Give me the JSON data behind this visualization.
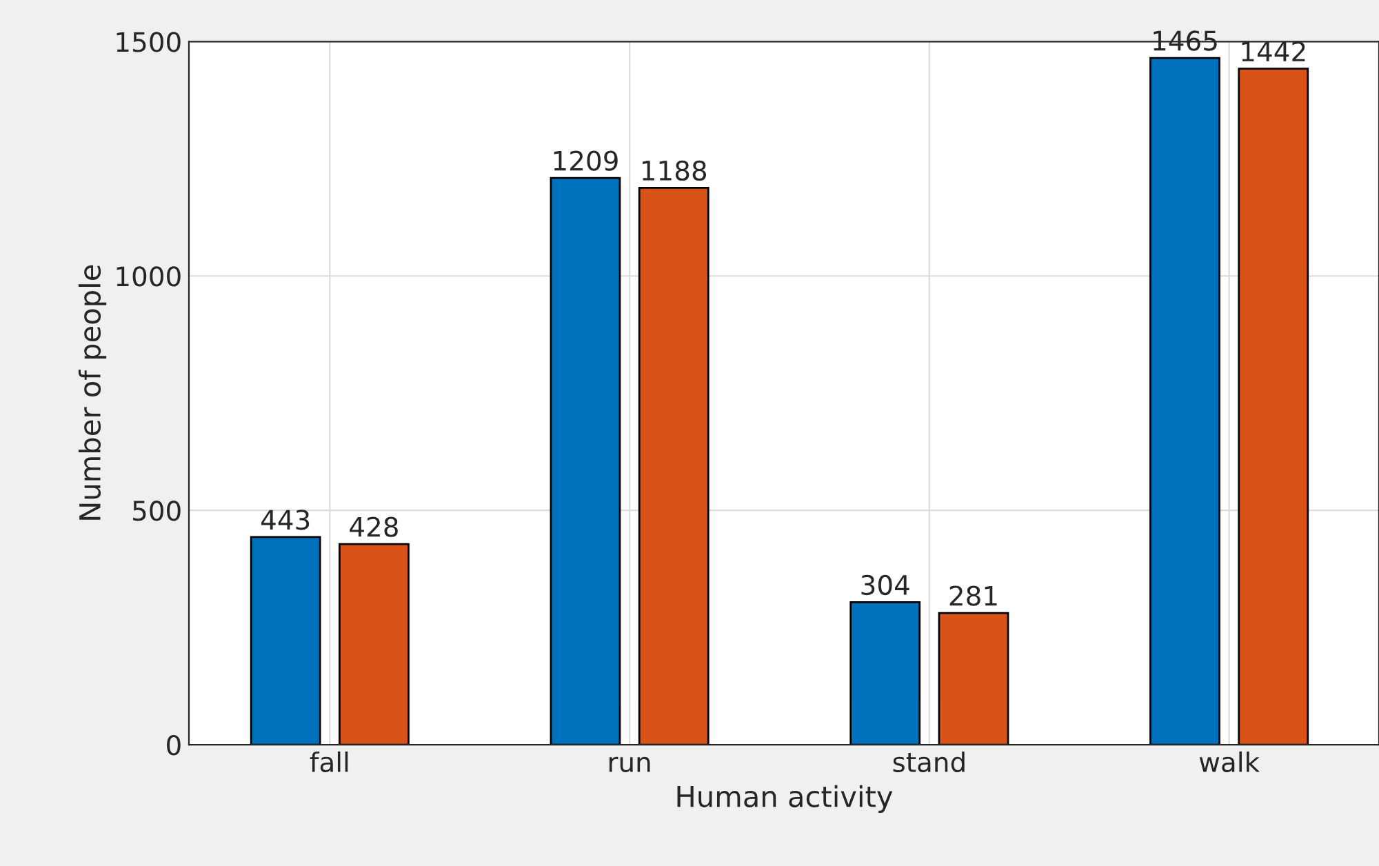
{
  "chart_data": {
    "type": "bar",
    "xlabel": "Human activity",
    "ylabel": "Number of people",
    "categories": [
      "fall",
      "run",
      "stand",
      "walk"
    ],
    "series": [
      {
        "color": "#0072bd",
        "values": [
          443,
          1209,
          304,
          1465
        ]
      },
      {
        "color": "#d95319",
        "values": [
          428,
          1188,
          281,
          1442
        ]
      }
    ],
    "ylim": [
      0,
      1500
    ],
    "yticks": [
      0,
      500,
      1000,
      1500
    ],
    "grid": true,
    "data_labels": true
  }
}
